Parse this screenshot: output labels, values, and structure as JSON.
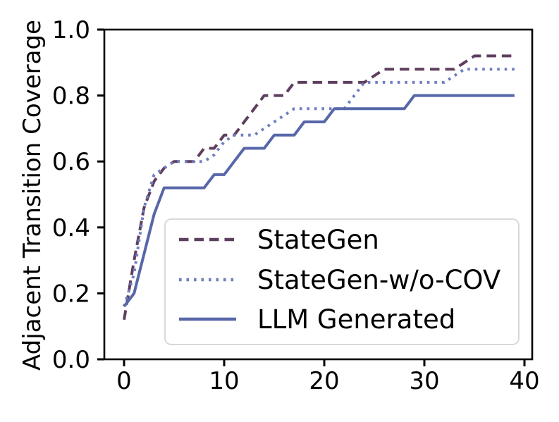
{
  "figure": {
    "background": "#ffffff"
  },
  "colors": {
    "axis": "#000000",
    "tick_label": "#000000",
    "legend_border": "#d9d9d9",
    "legend_background": "#ffffff",
    "stategen": "#5e3f5e",
    "stategen_wo_cov": "#6e7ec0",
    "llm_generated": "#5767a9"
  },
  "chart_data": {
    "type": "line",
    "title": "",
    "xlabel": "",
    "ylabel": "Adjacent Transition Coverage",
    "xlim": [
      -1.95,
      40.95
    ],
    "ylim": [
      0,
      1.0
    ],
    "grid": false,
    "legend_position": "inside lower-right",
    "x_tick_labels": [
      "0",
      "10",
      "20",
      "30",
      "40"
    ],
    "x_tick_values": [
      0,
      10,
      20,
      30,
      40
    ],
    "y_tick_labels": [
      "0.0",
      "0.2",
      "0.4",
      "0.6",
      "0.8",
      "1.0"
    ],
    "y_tick_values": [
      0,
      0.2,
      0.4,
      0.6,
      0.8,
      1.0
    ],
    "x": [
      0,
      1,
      2,
      3,
      4,
      5,
      6,
      7,
      8,
      9,
      10,
      11,
      12,
      13,
      14,
      15,
      16,
      17,
      18,
      19,
      20,
      21,
      22,
      23,
      24,
      25,
      26,
      27,
      28,
      29,
      30,
      31,
      32,
      33,
      34,
      35,
      36,
      37,
      38,
      39
    ],
    "series": [
      {
        "name": "StateGen",
        "style": "dashed",
        "color": "#5e3f5e",
        "values": [
          0.12,
          0.3,
          0.46,
          0.54,
          0.58,
          0.6,
          0.6,
          0.6,
          0.64,
          0.64,
          0.68,
          0.68,
          0.72,
          0.76,
          0.8,
          0.8,
          0.8,
          0.84,
          0.84,
          0.84,
          0.84,
          0.84,
          0.84,
          0.84,
          0.84,
          0.86,
          0.88,
          0.88,
          0.88,
          0.88,
          0.88,
          0.88,
          0.88,
          0.88,
          0.9,
          0.92,
          0.92,
          0.92,
          0.92,
          0.92
        ]
      },
      {
        "name": "StateGen-w/o-COV",
        "style": "dotted",
        "color": "#6e7ec0",
        "values": [
          0.16,
          0.26,
          0.46,
          0.56,
          0.58,
          0.6,
          0.6,
          0.6,
          0.6,
          0.62,
          0.66,
          0.68,
          0.68,
          0.68,
          0.7,
          0.72,
          0.74,
          0.76,
          0.76,
          0.76,
          0.76,
          0.76,
          0.76,
          0.8,
          0.84,
          0.84,
          0.84,
          0.84,
          0.84,
          0.84,
          0.84,
          0.84,
          0.84,
          0.86,
          0.88,
          0.88,
          0.88,
          0.88,
          0.88,
          0.88
        ]
      },
      {
        "name": "LLM Generated",
        "style": "solid",
        "color": "#5767a9",
        "values": [
          0.16,
          0.2,
          0.32,
          0.44,
          0.52,
          0.52,
          0.52,
          0.52,
          0.52,
          0.56,
          0.56,
          0.6,
          0.64,
          0.64,
          0.64,
          0.68,
          0.68,
          0.68,
          0.72,
          0.72,
          0.72,
          0.76,
          0.76,
          0.76,
          0.76,
          0.76,
          0.76,
          0.76,
          0.76,
          0.8,
          0.8,
          0.8,
          0.8,
          0.8,
          0.8,
          0.8,
          0.8,
          0.8,
          0.8,
          0.8
        ]
      }
    ]
  }
}
